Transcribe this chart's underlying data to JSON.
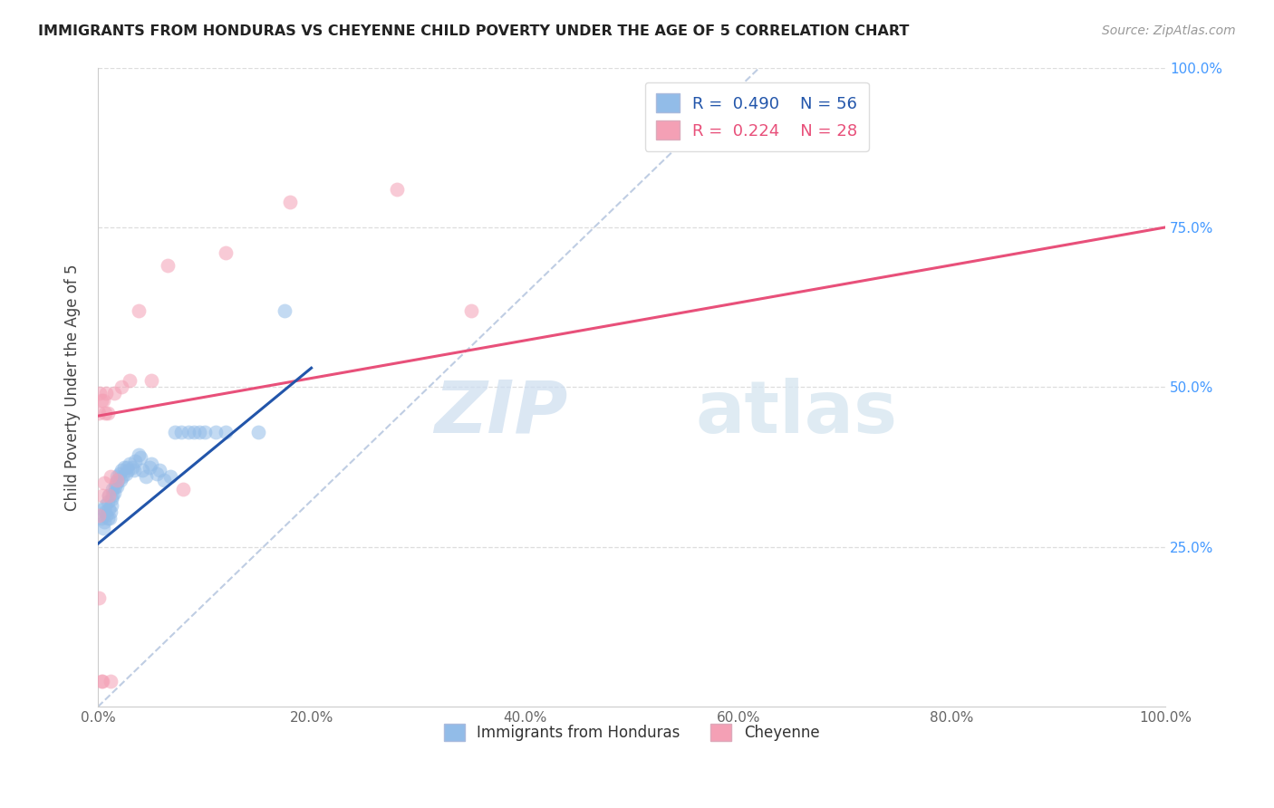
{
  "title": "IMMIGRANTS FROM HONDURAS VS CHEYENNE CHILD POVERTY UNDER THE AGE OF 5 CORRELATION CHART",
  "source": "Source: ZipAtlas.com",
  "ylabel": "Child Poverty Under the Age of 5",
  "xlim": [
    0.0,
    1.0
  ],
  "ylim": [
    0.0,
    1.0
  ],
  "xtick_labels": [
    "0.0%",
    "20.0%",
    "40.0%",
    "60.0%",
    "80.0%",
    "100.0%"
  ],
  "xtick_vals": [
    0.0,
    0.2,
    0.4,
    0.6,
    0.8,
    1.0
  ],
  "ytick_vals": [
    0.25,
    0.5,
    0.75,
    1.0
  ],
  "ytick_right_labels": [
    "25.0%",
    "50.0%",
    "75.0%",
    "100.0%"
  ],
  "legend_blue_R": "0.490",
  "legend_blue_N": "56",
  "legend_pink_R": "0.224",
  "legend_pink_N": "28",
  "blue_color": "#92bce8",
  "pink_color": "#f4a0b5",
  "blue_line_color": "#2255aa",
  "pink_line_color": "#e8507a",
  "dashed_line_color": "#b8c8e0",
  "watermark_zip": "ZIP",
  "watermark_atlas": "atlas",
  "blue_scatter_x": [
    0.003,
    0.004,
    0.005,
    0.005,
    0.006,
    0.007,
    0.007,
    0.008,
    0.009,
    0.009,
    0.01,
    0.01,
    0.011,
    0.012,
    0.013,
    0.013,
    0.014,
    0.014,
    0.015,
    0.016,
    0.017,
    0.018,
    0.018,
    0.019,
    0.02,
    0.021,
    0.022,
    0.023,
    0.025,
    0.026,
    0.027,
    0.028,
    0.03,
    0.032,
    0.034,
    0.035,
    0.038,
    0.04,
    0.042,
    0.045,
    0.048,
    0.05,
    0.055,
    0.058,
    0.062,
    0.068,
    0.072,
    0.078,
    0.085,
    0.09,
    0.095,
    0.1,
    0.11,
    0.12,
    0.15,
    0.175
  ],
  "blue_scatter_y": [
    0.295,
    0.3,
    0.28,
    0.31,
    0.29,
    0.305,
    0.315,
    0.3,
    0.295,
    0.32,
    0.31,
    0.33,
    0.295,
    0.305,
    0.315,
    0.325,
    0.33,
    0.34,
    0.335,
    0.345,
    0.35,
    0.36,
    0.345,
    0.355,
    0.365,
    0.355,
    0.37,
    0.36,
    0.375,
    0.365,
    0.375,
    0.37,
    0.38,
    0.375,
    0.37,
    0.385,
    0.395,
    0.39,
    0.37,
    0.36,
    0.375,
    0.38,
    0.365,
    0.37,
    0.355,
    0.36,
    0.43,
    0.43,
    0.43,
    0.43,
    0.43,
    0.43,
    0.43,
    0.43,
    0.43,
    0.62
  ],
  "pink_scatter_x": [
    0.001,
    0.001,
    0.002,
    0.003,
    0.004,
    0.005,
    0.006,
    0.007,
    0.008,
    0.009,
    0.01,
    0.012,
    0.015,
    0.018,
    0.022,
    0.03,
    0.038,
    0.05,
    0.065,
    0.12,
    0.18,
    0.28,
    0.35,
    0.001,
    0.003,
    0.004,
    0.012,
    0.08
  ],
  "pink_scatter_y": [
    0.46,
    0.3,
    0.49,
    0.48,
    0.33,
    0.48,
    0.35,
    0.46,
    0.49,
    0.46,
    0.33,
    0.36,
    0.49,
    0.355,
    0.5,
    0.51,
    0.62,
    0.51,
    0.69,
    0.71,
    0.79,
    0.81,
    0.62,
    0.17,
    0.04,
    0.04,
    0.04,
    0.34
  ],
  "blue_line_x": [
    0.0,
    0.2
  ],
  "blue_line_y": [
    0.255,
    0.53
  ],
  "pink_line_x": [
    0.0,
    1.0
  ],
  "pink_line_y": [
    0.455,
    0.75
  ],
  "dashed_line_x": [
    0.0,
    0.62
  ],
  "dashed_line_y": [
    0.0,
    1.0
  ]
}
